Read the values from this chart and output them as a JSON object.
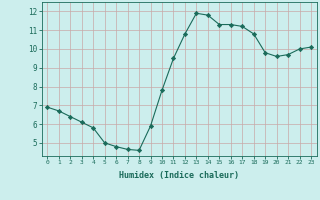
{
  "x": [
    0,
    1,
    2,
    3,
    4,
    5,
    6,
    7,
    8,
    9,
    10,
    11,
    12,
    13,
    14,
    15,
    16,
    17,
    18,
    19,
    20,
    21,
    22,
    23
  ],
  "y": [
    6.9,
    6.7,
    6.4,
    6.1,
    5.8,
    5.0,
    4.8,
    4.65,
    4.6,
    5.9,
    7.8,
    9.5,
    10.8,
    11.9,
    11.8,
    11.3,
    11.3,
    11.2,
    10.8,
    9.8,
    9.6,
    9.7,
    10.0,
    10.1
  ],
  "line_color": "#1a6b5a",
  "marker": "D",
  "marker_size": 2.2,
  "bg_color": "#cceeed",
  "grid_color": "#c0dcdb",
  "xlabel": "Humidex (Indice chaleur)",
  "xlabel_color": "#1a6b5a",
  "tick_color": "#1a6b5a",
  "xlim": [
    -0.5,
    23.5
  ],
  "ylim": [
    4.3,
    12.5
  ],
  "yticks": [
    5,
    6,
    7,
    8,
    9,
    10,
    11,
    12
  ],
  "xticks": [
    0,
    1,
    2,
    3,
    4,
    5,
    6,
    7,
    8,
    9,
    10,
    11,
    12,
    13,
    14,
    15,
    16,
    17,
    18,
    19,
    20,
    21,
    22,
    23
  ]
}
